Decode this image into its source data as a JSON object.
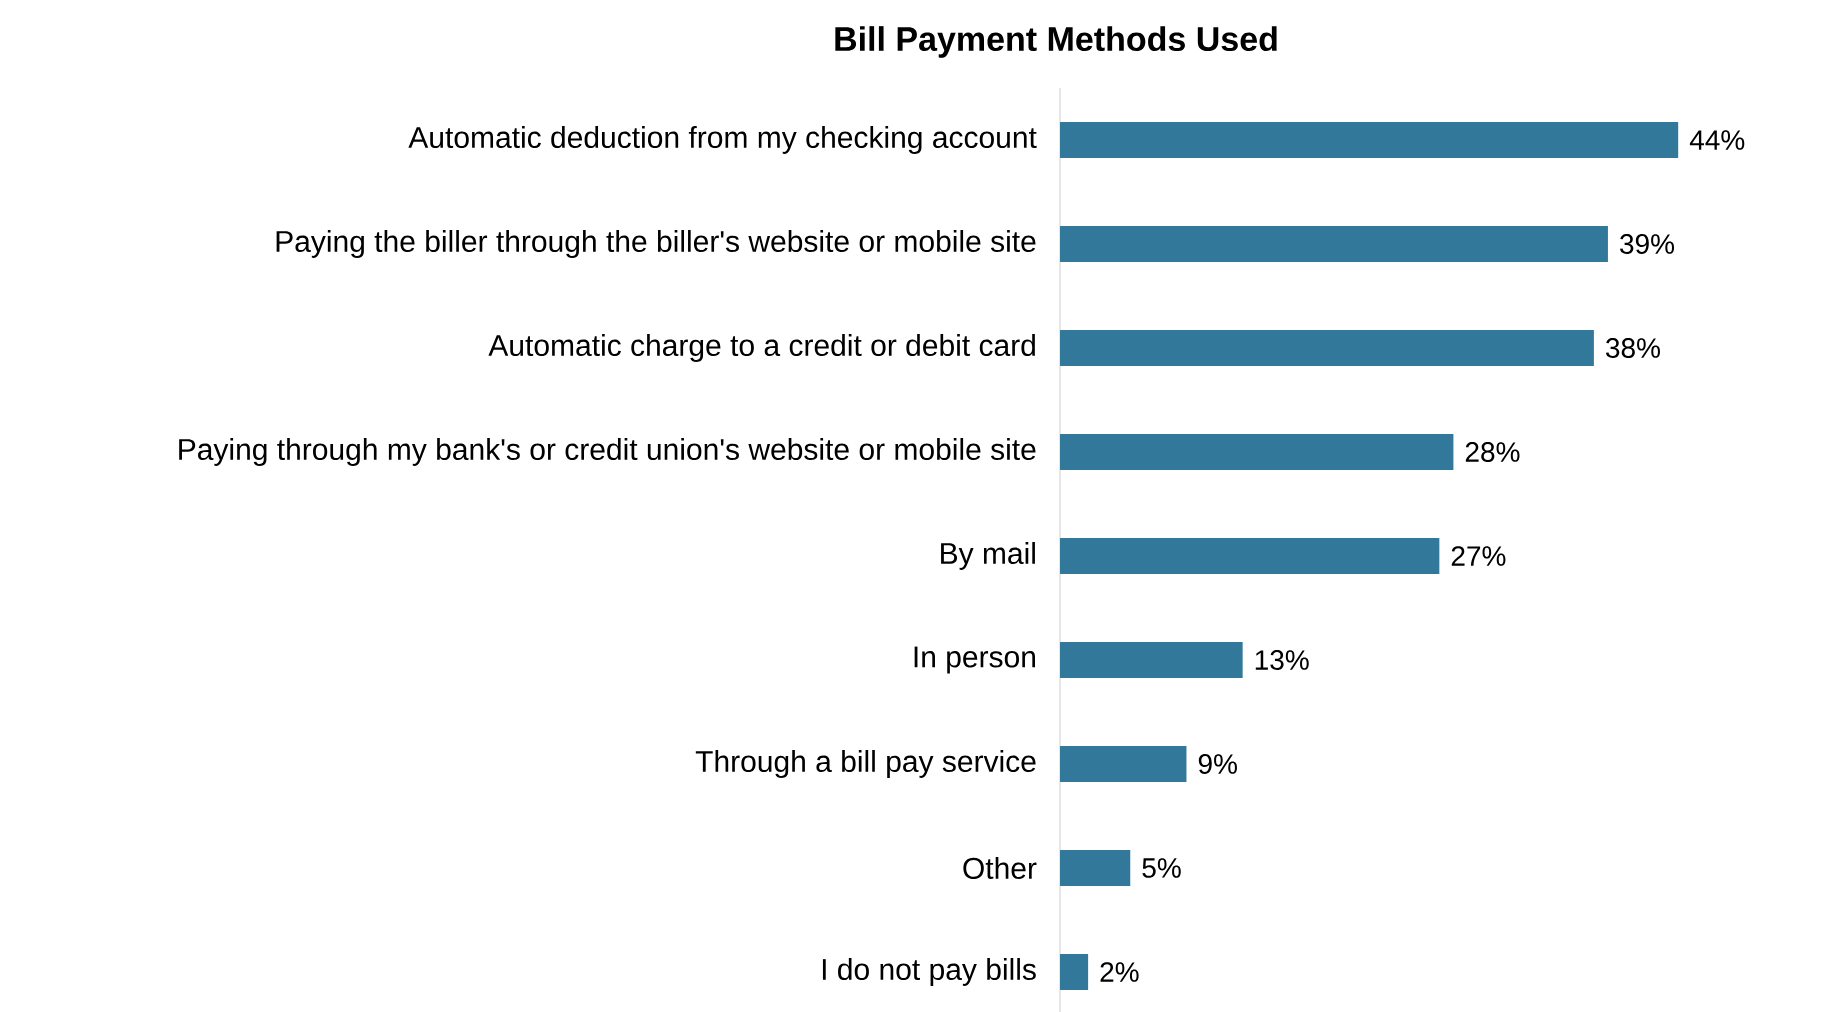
{
  "chart_data": {
    "type": "bar",
    "orientation": "horizontal",
    "title": "Bill Payment Methods Used",
    "categories": [
      "Automatic deduction from my checking account",
      "Paying the biller through the biller's website or mobile site",
      "Automatic charge to a credit or debit card",
      "Paying through my bank's or credit union's website or mobile site",
      "By mail",
      "In person",
      "Through a bill pay service",
      "Other",
      "I do not pay bills"
    ],
    "values": [
      44,
      39,
      38,
      28,
      27,
      13,
      9,
      5,
      2
    ],
    "value_labels": [
      "44%",
      "39%",
      "38%",
      "28%",
      "27%",
      "13%",
      "9%",
      "5%",
      "2%"
    ],
    "color": "#31789a"
  }
}
